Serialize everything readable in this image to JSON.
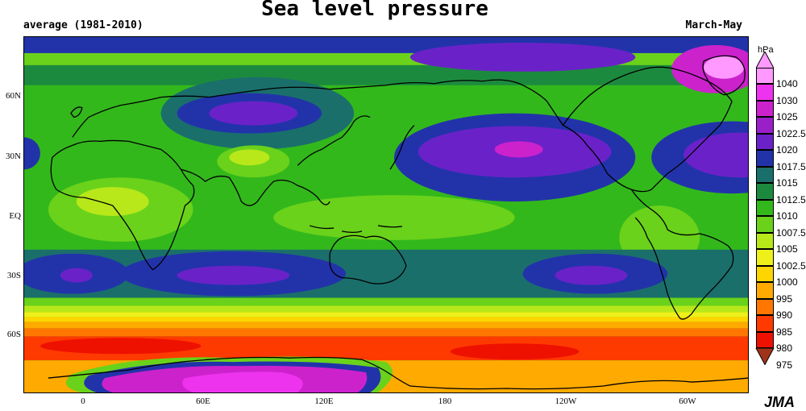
{
  "title": "Sea level pressure",
  "subtitle_left": "average (1981-2010)",
  "subtitle_right": "March-May",
  "credit": "JMA",
  "map": {
    "latitude_labels": [
      "60N",
      "30N",
      "EQ",
      "30S",
      "60S"
    ],
    "longitude_labels": [
      "0",
      "60E",
      "120E",
      "180",
      "120W",
      "60W"
    ]
  },
  "colorbar": {
    "unit": "hPa",
    "levels": [
      "1040",
      "1030",
      "1025",
      "1022.5",
      "1020",
      "1017.5",
      "1015",
      "1012.5",
      "1010",
      "1007.5",
      "1005",
      "1002.5",
      "1000",
      "995",
      "990",
      "985",
      "980",
      "975"
    ],
    "colors": [
      "#ff99ff",
      "#ee33ee",
      "#cc22cc",
      "#9a1fc9",
      "#6a22c8",
      "#2233aa",
      "#1a6f6b",
      "#1c8a3e",
      "#33b81c",
      "#6ad21a",
      "#b8e81a",
      "#eef01a",
      "#ffd500",
      "#ffaa00",
      "#ff7700",
      "#ff3a00",
      "#ee1100",
      "#a0341a"
    ]
  }
}
